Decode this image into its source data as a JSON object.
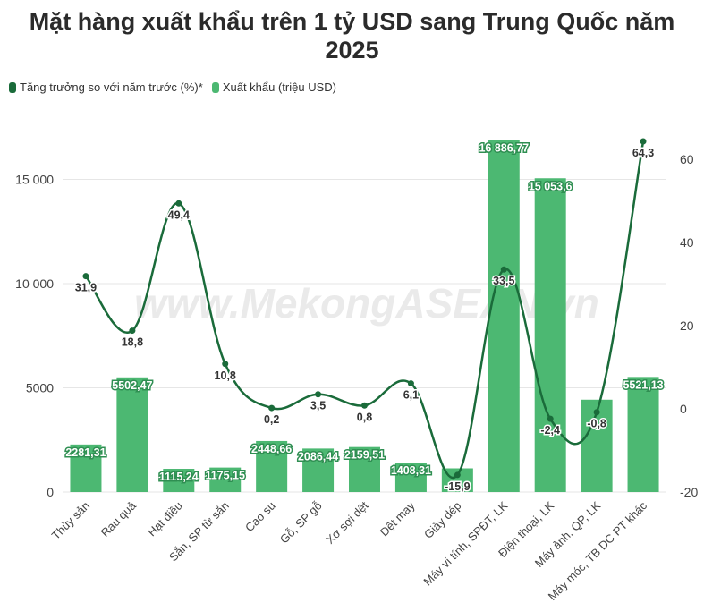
{
  "title": "Mặt hàng xuất khẩu trên 1 tỷ USD sang Trung Quốc năm 2025",
  "watermark": "www.MekongASEAN.vn",
  "colors": {
    "bar": "#4cb872",
    "line": "#1a6b3a"
  },
  "chart_data": {
    "type": "bar+line",
    "categories": [
      "Thủy sản",
      "Rau quả",
      "Hạt điều",
      "Sắn, SP từ sắn",
      "Cao su",
      "Gỗ, SP gỗ",
      "Xơ sợi dệt",
      "Dệt may",
      "Giày dép",
      "Máy vi tính, SPĐT, LK",
      "Điện thoại, LK",
      "Máy ảnh, QP, LK",
      "Máy móc, TB DC PT khác"
    ],
    "series": [
      {
        "name": "Tăng trưởng so với năm trước (%)*",
        "type": "line",
        "axis": "right",
        "values": [
          31.9,
          18.8,
          49.4,
          10.8,
          0.2,
          3.5,
          0.8,
          6.1,
          -15.9,
          33.5,
          -2.4,
          -0.8,
          64.3
        ],
        "labels": [
          "31,9",
          "18,8",
          "49,4",
          "10,8",
          "0,2",
          "3,5",
          "0,8",
          "6,1",
          "-15,9",
          "33,5",
          "-2,4",
          "-0,8",
          "64,3"
        ]
      },
      {
        "name": "Xuất khẩu (triệu USD)",
        "type": "bar",
        "axis": "left",
        "values": [
          2281.31,
          5502.47,
          1115.24,
          1175.15,
          2448.66,
          2086.44,
          2159.51,
          1408.31,
          1137,
          16886.77,
          15053.6,
          4430,
          5521.13
        ],
        "labels": [
          "2281,31",
          "5502,47",
          "1115,24",
          "1175,15",
          "2448,66",
          "2086,44",
          "2159,51",
          "1408,31",
          "",
          "16 886,77",
          "15 053,6",
          "",
          "5521,13"
        ]
      }
    ],
    "y_left": {
      "range": [
        0,
        17700
      ],
      "ticks": [
        0,
        5000,
        10000,
        15000
      ],
      "tick_labels": [
        "0",
        "5000",
        "10 000",
        "15 000"
      ]
    },
    "y_right": {
      "range": [
        -20,
        68
      ],
      "ticks": [
        -20,
        0,
        20,
        40,
        60
      ],
      "tick_labels": [
        "-20",
        "0",
        "20",
        "40",
        "60"
      ]
    },
    "grid": true,
    "legend_position": "top-left"
  }
}
